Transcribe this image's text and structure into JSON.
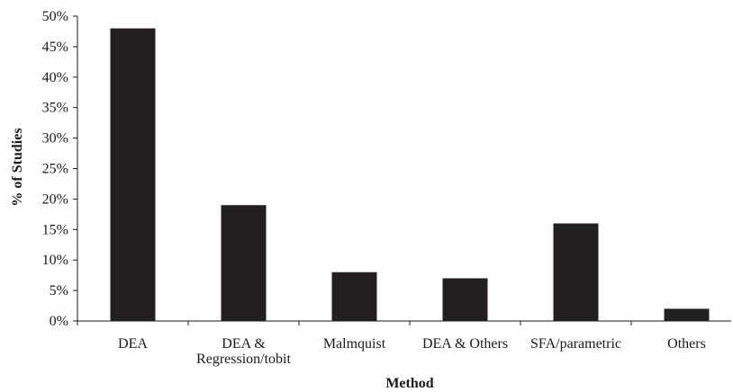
{
  "chart_data": {
    "type": "bar",
    "categories": [
      [
        "DEA"
      ],
      [
        "DEA &",
        "Regression/tobit"
      ],
      [
        "Malmquist"
      ],
      [
        "DEA & Others"
      ],
      [
        "SFA/parametric"
      ],
      [
        "Others"
      ]
    ],
    "values": [
      48,
      19,
      8,
      7,
      16,
      2
    ],
    "xlabel": "Method",
    "ylabel": "% of Studies",
    "ylim": [
      0,
      50
    ],
    "yticks": [
      0,
      5,
      10,
      15,
      20,
      25,
      30,
      35,
      40,
      45,
      50
    ],
    "ytick_suffix": "%",
    "grid": false,
    "legend": "none",
    "bar_color": "#231f20"
  }
}
